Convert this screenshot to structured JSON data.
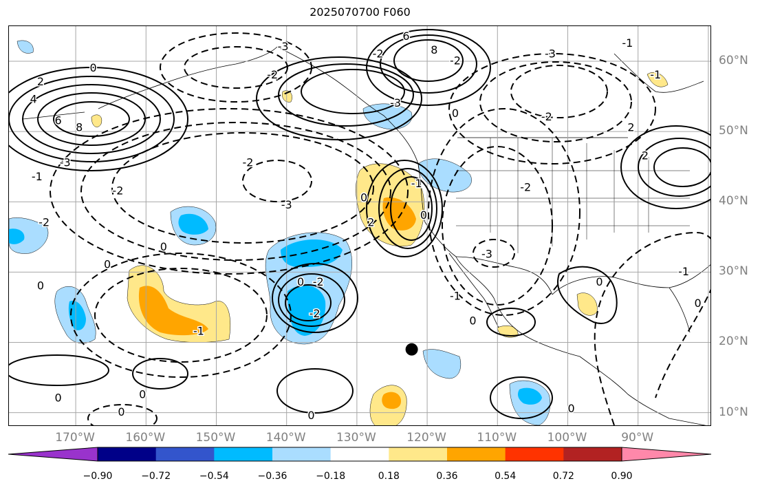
{
  "title": "2025070700 F060",
  "map": {
    "projection": "plate-carree",
    "lon_range": [
      -179.5,
      -79.5
    ],
    "lat_range": [
      8,
      65
    ],
    "grid": true,
    "grid_color": "#a6a6a6",
    "contour_color": "#000000",
    "marker": {
      "lon": -122.2,
      "lat": 19,
      "color": "#000000"
    },
    "lon_labels": [
      "170°W",
      "160°W",
      "150°W",
      "140°W",
      "130°W",
      "120°W",
      "110°W",
      "100°W",
      "90°W"
    ],
    "lat_labels": [
      "60°N",
      "50°N",
      "40°N",
      "30°N",
      "20°N",
      "10°N"
    ],
    "contour_labels": [
      {
        "text": "2",
        "lon": -175,
        "lat": 57
      },
      {
        "text": "4",
        "lon": -176,
        "lat": 54.5
      },
      {
        "text": "6",
        "lon": -172.5,
        "lat": 51.5
      },
      {
        "text": "8",
        "lon": -169.5,
        "lat": 50.5
      },
      {
        "text": "0",
        "lon": -167.5,
        "lat": 59
      },
      {
        "text": "-3",
        "lon": -171.5,
        "lat": 45.5
      },
      {
        "text": "-1",
        "lon": -175.5,
        "lat": 43.5
      },
      {
        "text": "-2",
        "lon": -174.5,
        "lat": 37
      },
      {
        "text": "-2",
        "lon": -164,
        "lat": 41.5
      },
      {
        "text": "-2",
        "lon": -145.5,
        "lat": 45.5
      },
      {
        "text": "-3",
        "lon": -140,
        "lat": 39.5
      },
      {
        "text": "-2",
        "lon": -142,
        "lat": 58
      },
      {
        "text": "-3",
        "lon": -140.5,
        "lat": 62
      },
      {
        "text": "0",
        "lon": -157.5,
        "lat": 33.5
      },
      {
        "text": "0",
        "lon": -165.5,
        "lat": 31
      },
      {
        "text": "0",
        "lon": -175,
        "lat": 28
      },
      {
        "text": "0",
        "lon": -172.5,
        "lat": 12
      },
      {
        "text": "0",
        "lon": -160.5,
        "lat": 12.5
      },
      {
        "text": "0",
        "lon": -163.5,
        "lat": 10
      },
      {
        "text": "0",
        "lon": -136.5,
        "lat": 9.5
      },
      {
        "text": "0",
        "lon": -138,
        "lat": 28.5
      },
      {
        "text": "-1",
        "lon": -152.5,
        "lat": 21.5
      },
      {
        "text": "-2",
        "lon": -135.5,
        "lat": 28.5
      },
      {
        "text": "-2",
        "lon": -136,
        "lat": 24
      },
      {
        "text": "-3",
        "lon": -124.5,
        "lat": 54
      },
      {
        "text": "-2",
        "lon": -127,
        "lat": 61
      },
      {
        "text": "6",
        "lon": -123,
        "lat": 63.5
      },
      {
        "text": "8",
        "lon": -119,
        "lat": 61.5
      },
      {
        "text": "-2",
        "lon": -116,
        "lat": 60
      },
      {
        "text": "0",
        "lon": -116,
        "lat": 52.5
      },
      {
        "text": "0",
        "lon": -129,
        "lat": 40.5
      },
      {
        "text": "2",
        "lon": -128,
        "lat": 37
      },
      {
        "text": "-1",
        "lon": -121.5,
        "lat": 42.5
      },
      {
        "text": "0",
        "lon": -120.5,
        "lat": 38
      },
      {
        "text": "-3",
        "lon": -111.5,
        "lat": 32.5
      },
      {
        "text": "-2",
        "lon": -106,
        "lat": 42
      },
      {
        "text": "-3",
        "lon": -102.5,
        "lat": 61
      },
      {
        "text": "-2",
        "lon": -103,
        "lat": 52
      },
      {
        "text": "2",
        "lon": -91,
        "lat": 50.5
      },
      {
        "text": "2",
        "lon": -89,
        "lat": 46.5
      },
      {
        "text": "-1",
        "lon": -91.5,
        "lat": 62.5
      },
      {
        "text": "-1",
        "lon": -87.5,
        "lat": 58
      },
      {
        "text": "0",
        "lon": -113.5,
        "lat": 23
      },
      {
        "text": "0",
        "lon": -99.5,
        "lat": 10.5
      },
      {
        "text": "0",
        "lon": -95.5,
        "lat": 28.5
      },
      {
        "text": "-1",
        "lon": -83.5,
        "lat": 30
      },
      {
        "text": "0",
        "lon": -81.5,
        "lat": 25.5
      },
      {
        "text": "-1",
        "lon": -116,
        "lat": 26.5
      }
    ]
  },
  "colorbar": {
    "tick_labels": [
      "−0.90",
      "−0.72",
      "−0.54",
      "−0.36",
      "−0.18",
      "0.18",
      "0.36",
      "0.54",
      "0.72",
      "0.90"
    ],
    "colors": [
      "#9933cc",
      "#000088",
      "#3355cc",
      "#00bbff",
      "#aaddff",
      "#ffffff",
      "#ffe88a",
      "#ffa500",
      "#ff3300",
      "#b22222",
      "#ff88aa"
    ]
  }
}
